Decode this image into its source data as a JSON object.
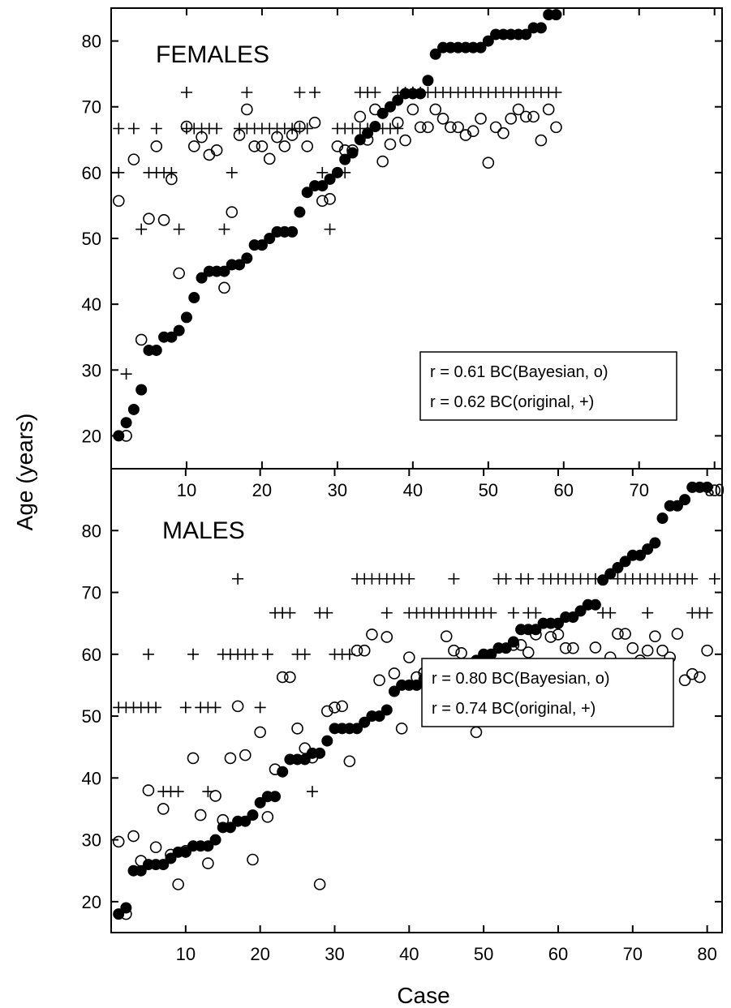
{
  "chart_data": [
    {
      "type": "scatter",
      "title": "FEMALES",
      "xlabel": "Case",
      "ylabel": "Age (years)",
      "xlim": [
        0,
        81
      ],
      "ylim": [
        15,
        85
      ],
      "x_ticks": [
        10,
        20,
        30,
        40,
        50,
        60,
        70,
        80
      ],
      "y_ticks": [
        20,
        30,
        40,
        50,
        60,
        70,
        80
      ],
      "annotations": [
        "r = 0.61 BC(Bayesian, o)",
        "r = 0.62 BC(original, +)"
      ],
      "series": [
        {
          "marker": "filled-circle",
          "x": [
            1,
            2,
            3,
            4,
            5,
            6,
            7,
            8,
            9,
            10,
            11,
            12,
            13,
            14,
            15,
            16,
            17,
            18,
            19,
            20,
            21,
            22,
            23,
            24,
            25,
            26,
            27,
            28,
            29,
            30,
            31,
            32,
            33,
            34,
            35,
            36,
            37,
            38,
            39,
            40,
            41,
            42,
            43,
            44,
            45,
            46,
            47,
            48,
            49,
            50,
            51,
            52,
            53,
            54,
            55,
            56,
            57,
            58,
            59
          ],
          "y": [
            20,
            22,
            24,
            27,
            33,
            33,
            35,
            35,
            36,
            38,
            41,
            44,
            45,
            45,
            45,
            46,
            46,
            47,
            49,
            49,
            50,
            51,
            51,
            51,
            54,
            57,
            58,
            58,
            59,
            60,
            62,
            63,
            65,
            66,
            67,
            69,
            70,
            71,
            72,
            72,
            72,
            74,
            78,
            79,
            79,
            79,
            79,
            79,
            79,
            80,
            81,
            81,
            81,
            81,
            81,
            82,
            82,
            84,
            84
          ]
        },
        {
          "marker": "open-circle",
          "x": [
            1,
            2,
            3,
            4,
            5,
            6,
            7,
            8,
            9,
            10,
            11,
            12,
            13,
            14,
            15,
            16,
            17,
            18,
            19,
            20,
            21,
            22,
            23,
            24,
            25,
            26,
            27,
            28,
            29,
            30,
            31,
            32,
            33,
            34,
            35,
            36,
            37,
            38,
            39,
            40,
            41,
            42,
            43,
            44,
            45,
            46,
            47,
            48,
            49,
            50,
            51,
            52,
            53,
            54,
            55,
            56,
            57,
            58,
            59
          ],
          "y": [
            55.7,
            20,
            62,
            34.6,
            53,
            64,
            52.8,
            59,
            44.7,
            67,
            64,
            65.4,
            62.7,
            63.4,
            42.5,
            54,
            65.7,
            69.6,
            64,
            64,
            62.1,
            65.4,
            64,
            65.7,
            67,
            64,
            67.6,
            55.7,
            56,
            64,
            63.4,
            63.4,
            68.5,
            65,
            69.6,
            61.7,
            64.3,
            67.6,
            64.9,
            69.6,
            66.9,
            66.9,
            69.6,
            68.2,
            66.9,
            66.9,
            65.7,
            66.3,
            68.2,
            61.5,
            66.9,
            66,
            68.2,
            69.6,
            68.5,
            68.5,
            64.9,
            69.6,
            66.9
          ]
        },
        {
          "marker": "plus",
          "x": [
            1,
            1,
            2,
            3,
            4,
            5,
            6,
            6,
            7,
            8,
            9,
            10,
            10,
            11,
            12,
            13,
            14,
            15,
            16,
            17,
            18,
            18,
            19,
            20,
            21,
            22,
            23,
            24,
            25,
            25,
            26,
            27,
            28,
            29,
            30,
            31,
            31,
            32,
            33,
            33,
            34,
            34,
            35,
            36,
            37,
            38,
            38,
            39,
            40,
            40,
            41,
            42,
            43,
            44,
            45,
            46,
            47,
            48,
            49,
            50,
            51,
            52,
            53,
            54,
            55,
            56,
            57,
            58,
            59
          ],
          "y": [
            60,
            66.7,
            29.4,
            66.7,
            51.4,
            60,
            66.7,
            60,
            60,
            60,
            51.4,
            72.2,
            66.7,
            66.7,
            66.7,
            66.7,
            66.7,
            51.4,
            60,
            66.7,
            72.2,
            66.7,
            66.7,
            66.7,
            66.7,
            66.7,
            66.7,
            66.7,
            72.2,
            66.7,
            66.7,
            72.2,
            60,
            51.4,
            66.7,
            60,
            66.7,
            66.7,
            72.2,
            66.7,
            66.7,
            72.2,
            72.2,
            66.7,
            66.7,
            72.2,
            66.7,
            72.2,
            72.2,
            72.2,
            72.2,
            72.2,
            72.2,
            72.2,
            72.2,
            72.2,
            72.2,
            72.2,
            72.2,
            72.2,
            72.2,
            72.2,
            72.2,
            72.2,
            72.2,
            72.2,
            72.2,
            72.2,
            72.2
          ]
        }
      ]
    },
    {
      "type": "scatter",
      "title": "MALES",
      "xlabel": "Case",
      "ylabel": "Age (years)",
      "xlim": [
        0,
        82
      ],
      "ylim": [
        15,
        90
      ],
      "x_ticks": [
        10,
        20,
        30,
        40,
        50,
        60,
        70,
        80
      ],
      "y_ticks": [
        20,
        30,
        40,
        50,
        60,
        70,
        80
      ],
      "annotations": [
        "r = 0.80 BC(Bayesian, o)",
        "r = 0.74 BC(original, +)"
      ],
      "series": [
        {
          "marker": "filled-circle",
          "x": [
            1,
            2,
            3,
            4,
            5,
            6,
            7,
            8,
            9,
            10,
            11,
            12,
            13,
            14,
            15,
            16,
            17,
            18,
            19,
            20,
            21,
            22,
            23,
            24,
            25,
            26,
            27,
            28,
            29,
            30,
            31,
            32,
            33,
            34,
            35,
            36,
            37,
            38,
            39,
            40,
            41,
            42,
            43,
            44,
            45,
            46,
            47,
            48,
            49,
            50,
            51,
            52,
            53,
            54,
            55,
            56,
            57,
            58,
            59,
            60,
            61,
            62,
            63,
            64,
            65,
            66,
            67,
            68,
            69,
            70,
            71,
            72,
            73,
            74,
            75,
            76,
            77,
            78,
            79,
            80
          ],
          "y": [
            18,
            19,
            25,
            25,
            26,
            26,
            26,
            27,
            28,
            28,
            29,
            29,
            29,
            30,
            32,
            32,
            33,
            33,
            34,
            36,
            37,
            37,
            41,
            43,
            43,
            43,
            44,
            44,
            46,
            48,
            48,
            48,
            48,
            49,
            50,
            50,
            51,
            54,
            55,
            55,
            55,
            56,
            56,
            57,
            58,
            58,
            58,
            58,
            59,
            60,
            60,
            61,
            61,
            62,
            64,
            64,
            64,
            65,
            65,
            65,
            66,
            66,
            67,
            68,
            68,
            72,
            73,
            74,
            75,
            76,
            76,
            77,
            78,
            82,
            84,
            84,
            85,
            87,
            87,
            87
          ]
        },
        {
          "marker": "open-circle",
          "x": [
            1,
            2,
            3,
            4,
            5,
            6,
            7,
            8,
            9,
            10,
            11,
            12,
            13,
            14,
            15,
            16,
            17,
            18,
            19,
            20,
            21,
            22,
            23,
            24,
            25,
            26,
            27,
            28,
            29,
            30,
            31,
            32,
            33,
            34,
            35,
            36,
            37,
            38,
            39,
            40,
            41,
            42,
            43,
            44,
            45,
            46,
            47,
            48,
            49,
            50,
            51,
            52,
            53,
            54,
            55,
            56,
            57,
            58,
            59,
            60,
            61,
            62,
            63,
            64,
            65,
            66,
            67,
            68,
            69,
            70,
            71,
            72,
            73,
            74,
            75,
            76,
            77,
            78,
            79,
            80,
            81
          ],
          "y": [
            29.7,
            18,
            30.6,
            26.6,
            38,
            28.8,
            35,
            27.6,
            22.8,
            28.2,
            43.2,
            34,
            26.2,
            37.1,
            33.2,
            43.2,
            51.6,
            43.7,
            26.8,
            47.4,
            33.7,
            41.4,
            56.3,
            56.3,
            48,
            44.8,
            43.3,
            22.8,
            50.8,
            51.4,
            51.6,
            42.7,
            60.6,
            60.6,
            63.2,
            55.8,
            62.8,
            56.9,
            48,
            59.5,
            56.3,
            57,
            56.3,
            55.4,
            62.9,
            60.6,
            60.2,
            51.4,
            47.4,
            55.8,
            57.9,
            56.8,
            55.8,
            61.5,
            61.5,
            60.3,
            63.2,
            50.9,
            62.8,
            63.2,
            61,
            61,
            56.8,
            55.8,
            61.1,
            55.8,
            59.5,
            63.3,
            63.3,
            61,
            59,
            60.6,
            62.9,
            60.6,
            59.5,
            63.3,
            55.8,
            56.8,
            56.3,
            60.6,
            86.5
          ]
        },
        {
          "marker": "plus",
          "x": [
            1,
            2,
            3,
            4,
            5,
            5,
            6,
            7,
            8,
            9,
            10,
            11,
            12,
            13,
            13,
            14,
            15,
            16,
            17,
            17,
            18,
            19,
            20,
            21,
            22,
            23,
            23,
            24,
            25,
            26,
            27,
            28,
            29,
            30,
            31,
            32,
            33,
            34,
            35,
            36,
            37,
            37,
            38,
            39,
            40,
            40,
            41,
            42,
            43,
            44,
            45,
            46,
            46,
            47,
            48,
            49,
            50,
            51,
            52,
            53,
            54,
            55,
            56,
            56,
            57,
            58,
            59,
            60,
            61,
            62,
            63,
            64,
            65,
            66,
            67,
            68,
            69,
            70,
            71,
            72,
            72,
            73,
            74,
            75,
            76,
            77,
            78,
            78,
            79,
            80,
            81
          ],
          "y": [
            51.4,
            51.4,
            51.4,
            51.4,
            51.4,
            60,
            51.4,
            37.8,
            37.8,
            37.8,
            51.4,
            60,
            51.4,
            51.4,
            37.8,
            51.4,
            60,
            60,
            60,
            72.2,
            60,
            60,
            51.4,
            60,
            66.7,
            66.7,
            66.7,
            66.7,
            60,
            60,
            37.8,
            66.7,
            66.7,
            60,
            60,
            60,
            72.2,
            72.2,
            72.2,
            72.2,
            72.2,
            66.7,
            72.2,
            72.2,
            72.2,
            66.7,
            66.7,
            66.7,
            66.7,
            66.7,
            66.7,
            72.2,
            66.7,
            66.7,
            66.7,
            66.7,
            66.7,
            66.7,
            72.2,
            72.2,
            66.7,
            72.2,
            72.2,
            66.7,
            66.7,
            72.2,
            72.2,
            72.2,
            72.2,
            72.2,
            72.2,
            72.2,
            72.2,
            66.7,
            66.7,
            72.2,
            72.2,
            72.2,
            72.2,
            72.2,
            66.7,
            72.2,
            72.2,
            72.2,
            72.2,
            72.2,
            72.2,
            66.7,
            66.7,
            66.7,
            72.2
          ]
        }
      ]
    }
  ]
}
